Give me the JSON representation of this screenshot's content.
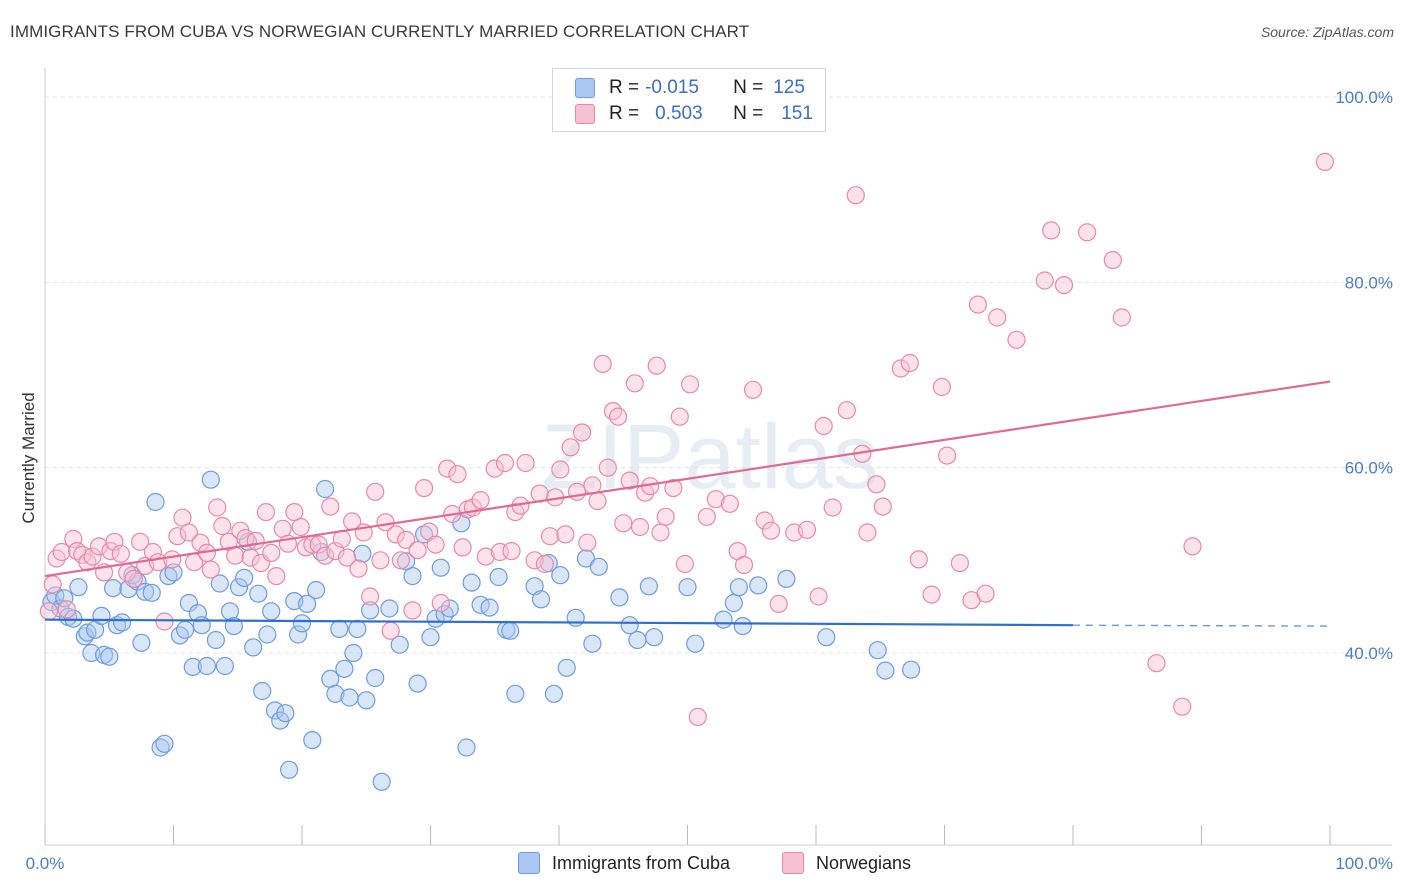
{
  "header": {
    "title": "IMMIGRANTS FROM CUBA VS NORWEGIAN CURRENTLY MARRIED CORRELATION CHART",
    "source": "Source: ZipAtlas.com"
  },
  "watermark": "ZIPatlas",
  "legend": {
    "rows": [
      {
        "r_label": "R =",
        "r_value": "-0.015",
        "n_label": "N =",
        "n_value": "125",
        "color": "#a9c7f0",
        "border": "#6f9be0"
      },
      {
        "r_label": "R =",
        "r_value": "0.503",
        "n_label": "N =",
        "n_value": "151",
        "color": "#f8c0d3",
        "border": "#e889a8"
      }
    ],
    "bottom": [
      {
        "label": "Immigrants from Cuba",
        "color": "#a9c7f0",
        "border": "#6f9be0"
      },
      {
        "label": "Norwegians",
        "color": "#f8c0d3",
        "border": "#e889a8"
      }
    ]
  },
  "chart_data": {
    "type": "scatter",
    "ylabel": "Currently Married",
    "x_tick_labels": [
      "0.0%",
      "100.0%"
    ],
    "y_tick_labels": [
      "100.0%",
      "80.0%",
      "60.0%",
      "40.0%"
    ],
    "xlim": [
      0,
      100
    ],
    "ylim": [
      18,
      104
    ],
    "grid": true,
    "series": [
      {
        "name": "Immigrants from Cuba",
        "color": "#6f9be0",
        "fill": "#a9c7f0",
        "trend": {
          "x0": 0,
          "y0": 43.6,
          "x1": 80,
          "y1": 43.0,
          "dash_to": 100,
          "dash_y": 42.9
        },
        "points": [
          [
            0.5,
            45.5
          ],
          [
            0.8,
            46.2
          ],
          [
            1.2,
            44.8
          ],
          [
            1.5,
            45.9
          ],
          [
            1.8,
            43.9
          ],
          [
            2.2,
            43.7
          ],
          [
            2.6,
            47.1
          ],
          [
            3.1,
            41.8
          ],
          [
            3.3,
            42.2
          ],
          [
            3.6,
            40.0
          ],
          [
            3.9,
            42.5
          ],
          [
            4.4,
            44.0
          ],
          [
            4.6,
            39.8
          ],
          [
            5.0,
            39.6
          ],
          [
            5.3,
            47.0
          ],
          [
            5.6,
            43.0
          ],
          [
            6.0,
            43.3
          ],
          [
            6.5,
            46.9
          ],
          [
            6.8,
            48.4
          ],
          [
            7.2,
            47.7
          ],
          [
            7.5,
            41.1
          ],
          [
            7.8,
            46.6
          ],
          [
            8.3,
            46.5
          ],
          [
            8.6,
            56.3
          ],
          [
            9.0,
            29.8
          ],
          [
            9.3,
            30.2
          ],
          [
            9.6,
            48.3
          ],
          [
            10.0,
            48.7
          ],
          [
            10.5,
            41.9
          ],
          [
            10.9,
            42.5
          ],
          [
            11.2,
            45.4
          ],
          [
            11.5,
            38.5
          ],
          [
            11.9,
            44.3
          ],
          [
            12.2,
            43.0
          ],
          [
            12.6,
            38.6
          ],
          [
            12.9,
            58.7
          ],
          [
            13.3,
            41.4
          ],
          [
            13.6,
            47.5
          ],
          [
            14.0,
            38.6
          ],
          [
            14.4,
            44.5
          ],
          [
            14.7,
            42.9
          ],
          [
            15.1,
            47.1
          ],
          [
            15.5,
            48.1
          ],
          [
            15.8,
            52.0
          ],
          [
            16.2,
            40.6
          ],
          [
            16.6,
            46.4
          ],
          [
            16.9,
            35.9
          ],
          [
            17.3,
            42.0
          ],
          [
            17.6,
            44.5
          ],
          [
            17.9,
            33.8
          ],
          [
            18.3,
            32.7
          ],
          [
            18.7,
            33.5
          ],
          [
            19.0,
            27.4
          ],
          [
            19.4,
            45.6
          ],
          [
            19.7,
            42.0
          ],
          [
            20.0,
            43.2
          ],
          [
            20.4,
            45.3
          ],
          [
            20.8,
            30.6
          ],
          [
            21.1,
            46.8
          ],
          [
            21.5,
            50.9
          ],
          [
            21.8,
            57.7
          ],
          [
            22.2,
            37.2
          ],
          [
            22.6,
            35.6
          ],
          [
            22.9,
            42.6
          ],
          [
            23.3,
            38.3
          ],
          [
            23.7,
            35.2
          ],
          [
            24.0,
            40.0
          ],
          [
            24.3,
            42.6
          ],
          [
            24.7,
            50.7
          ],
          [
            25.0,
            34.9
          ],
          [
            25.3,
            44.6
          ],
          [
            25.7,
            37.3
          ],
          [
            26.2,
            26.1
          ],
          [
            26.8,
            44.8
          ],
          [
            27.6,
            40.9
          ],
          [
            28.1,
            49.9
          ],
          [
            28.6,
            48.3
          ],
          [
            29.0,
            36.7
          ],
          [
            29.5,
            52.8
          ],
          [
            30.0,
            41.7
          ],
          [
            30.4,
            43.7
          ],
          [
            30.8,
            49.2
          ],
          [
            31.1,
            44.2
          ],
          [
            31.5,
            44.8
          ],
          [
            32.4,
            54.0
          ],
          [
            32.8,
            29.8
          ],
          [
            33.2,
            47.6
          ],
          [
            33.9,
            45.2
          ],
          [
            34.6,
            44.9
          ],
          [
            35.3,
            48.2
          ],
          [
            35.9,
            42.5
          ],
          [
            36.2,
            42.4
          ],
          [
            36.6,
            35.6
          ],
          [
            38.1,
            47.2
          ],
          [
            38.6,
            45.8
          ],
          [
            39.2,
            49.7
          ],
          [
            39.6,
            35.6
          ],
          [
            40.1,
            48.4
          ],
          [
            40.6,
            38.4
          ],
          [
            41.3,
            43.8
          ],
          [
            42.1,
            50.2
          ],
          [
            42.6,
            41.0
          ],
          [
            43.1,
            49.3
          ],
          [
            44.7,
            46.0
          ],
          [
            45.5,
            43.0
          ],
          [
            46.1,
            41.4
          ],
          [
            47.0,
            47.2
          ],
          [
            47.4,
            41.7
          ],
          [
            50.0,
            47.1
          ],
          [
            50.6,
            41.0
          ],
          [
            52.8,
            43.6
          ],
          [
            53.6,
            45.4
          ],
          [
            54.0,
            47.1
          ],
          [
            54.3,
            42.9
          ],
          [
            55.5,
            47.3
          ],
          [
            57.7,
            48.0
          ],
          [
            60.8,
            41.7
          ],
          [
            64.8,
            40.3
          ],
          [
            65.4,
            38.1
          ],
          [
            67.4,
            38.2
          ]
        ]
      },
      {
        "name": "Norwegians",
        "color": "#e889a8",
        "fill": "#f8c0d3",
        "trend": {
          "x0": 0,
          "y0": 48.3,
          "x1": 100,
          "y1": 69.3
        },
        "points": [
          [
            0.3,
            44.5
          ],
          [
            0.6,
            47.4
          ],
          [
            0.9,
            50.2
          ],
          [
            1.3,
            50.9
          ],
          [
            1.7,
            44.7
          ],
          [
            2.2,
            52.3
          ],
          [
            2.5,
            51.0
          ],
          [
            2.9,
            50.6
          ],
          [
            3.3,
            49.8
          ],
          [
            3.7,
            50.4
          ],
          [
            4.2,
            51.5
          ],
          [
            4.6,
            48.7
          ],
          [
            5.1,
            51.0
          ],
          [
            5.4,
            52.0
          ],
          [
            5.9,
            50.7
          ],
          [
            6.4,
            48.7
          ],
          [
            6.9,
            48.0
          ],
          [
            7.4,
            52.0
          ],
          [
            7.8,
            49.4
          ],
          [
            8.4,
            50.9
          ],
          [
            8.8,
            49.8
          ],
          [
            9.3,
            43.4
          ],
          [
            9.9,
            50.1
          ],
          [
            10.3,
            52.6
          ],
          [
            10.7,
            54.6
          ],
          [
            11.2,
            53.0
          ],
          [
            11.6,
            49.8
          ],
          [
            12.1,
            51.9
          ],
          [
            12.6,
            50.8
          ],
          [
            12.9,
            49.0
          ],
          [
            13.4,
            55.7
          ],
          [
            13.8,
            53.7
          ],
          [
            14.3,
            52.0
          ],
          [
            14.8,
            50.5
          ],
          [
            15.2,
            53.2
          ],
          [
            15.6,
            52.4
          ],
          [
            16.0,
            50.3
          ],
          [
            16.4,
            52.1
          ],
          [
            16.8,
            49.7
          ],
          [
            17.2,
            55.2
          ],
          [
            17.6,
            50.8
          ],
          [
            18.0,
            48.3
          ],
          [
            18.5,
            53.4
          ],
          [
            18.9,
            51.8
          ],
          [
            19.4,
            55.2
          ],
          [
            19.9,
            53.6
          ],
          [
            20.3,
            51.4
          ],
          [
            20.8,
            51.7
          ],
          [
            21.3,
            51.7
          ],
          [
            21.8,
            50.5
          ],
          [
            22.2,
            55.8
          ],
          [
            22.6,
            51.0
          ],
          [
            23.1,
            52.3
          ],
          [
            23.5,
            50.3
          ],
          [
            23.9,
            54.2
          ],
          [
            24.4,
            49.1
          ],
          [
            24.8,
            53.0
          ],
          [
            25.3,
            46.1
          ],
          [
            25.7,
            57.4
          ],
          [
            26.1,
            50.0
          ],
          [
            26.5,
            54.1
          ],
          [
            26.9,
            42.4
          ],
          [
            27.3,
            52.8
          ],
          [
            27.7,
            50.0
          ],
          [
            28.1,
            52.2
          ],
          [
            28.6,
            44.6
          ],
          [
            29.0,
            51.1
          ],
          [
            29.5,
            57.8
          ],
          [
            29.9,
            53.1
          ],
          [
            30.4,
            51.7
          ],
          [
            30.8,
            45.4
          ],
          [
            31.3,
            59.9
          ],
          [
            31.7,
            55.0
          ],
          [
            32.1,
            59.3
          ],
          [
            32.5,
            51.4
          ],
          [
            32.9,
            55.5
          ],
          [
            33.3,
            55.7
          ],
          [
            33.9,
            56.5
          ],
          [
            34.3,
            50.4
          ],
          [
            35.0,
            59.9
          ],
          [
            35.4,
            50.9
          ],
          [
            35.8,
            60.5
          ],
          [
            36.3,
            51.0
          ],
          [
            36.6,
            55.2
          ],
          [
            37.0,
            55.9
          ],
          [
            37.4,
            60.5
          ],
          [
            38.1,
            50.0
          ],
          [
            38.5,
            57.2
          ],
          [
            38.9,
            49.6
          ],
          [
            39.3,
            52.6
          ],
          [
            39.7,
            56.8
          ],
          [
            40.1,
            59.8
          ],
          [
            40.5,
            52.8
          ],
          [
            40.9,
            62.2
          ],
          [
            41.4,
            57.4
          ],
          [
            41.8,
            63.8
          ],
          [
            42.2,
            51.9
          ],
          [
            42.6,
            58.1
          ],
          [
            43.0,
            56.4
          ],
          [
            43.4,
            71.2
          ],
          [
            43.8,
            60.0
          ],
          [
            44.2,
            66.1
          ],
          [
            44.6,
            65.5
          ],
          [
            45.0,
            54.0
          ],
          [
            45.5,
            58.6
          ],
          [
            45.9,
            69.1
          ],
          [
            46.3,
            53.6
          ],
          [
            46.7,
            57.3
          ],
          [
            47.1,
            58.0
          ],
          [
            47.6,
            71.0
          ],
          [
            47.9,
            53.0
          ],
          [
            48.3,
            54.7
          ],
          [
            48.9,
            57.8
          ],
          [
            49.4,
            65.5
          ],
          [
            49.8,
            49.6
          ],
          [
            50.2,
            69.0
          ],
          [
            50.8,
            33.1
          ],
          [
            51.5,
            54.7
          ],
          [
            52.2,
            56.6
          ],
          [
            53.3,
            56.1
          ],
          [
            53.9,
            51.0
          ],
          [
            54.4,
            49.5
          ],
          [
            55.1,
            68.4
          ],
          [
            56.0,
            54.3
          ],
          [
            56.5,
            53.2
          ],
          [
            57.1,
            45.3
          ],
          [
            58.3,
            53.0
          ],
          [
            59.3,
            53.3
          ],
          [
            60.2,
            46.1
          ],
          [
            60.6,
            64.5
          ],
          [
            61.3,
            55.7
          ],
          [
            62.4,
            66.2
          ],
          [
            63.1,
            89.4
          ],
          [
            63.6,
            61.5
          ],
          [
            64.0,
            53.0
          ],
          [
            64.7,
            58.2
          ],
          [
            65.2,
            55.8
          ],
          [
            66.6,
            70.7
          ],
          [
            67.3,
            71.3
          ],
          [
            68.0,
            50.1
          ],
          [
            69.0,
            46.3
          ],
          [
            69.8,
            68.7
          ],
          [
            70.2,
            61.3
          ],
          [
            71.2,
            49.7
          ],
          [
            72.1,
            45.7
          ],
          [
            72.6,
            77.6
          ],
          [
            73.2,
            46.4
          ],
          [
            74.1,
            76.2
          ],
          [
            75.6,
            73.8
          ],
          [
            77.8,
            80.2
          ],
          [
            78.3,
            85.6
          ],
          [
            79.3,
            79.7
          ],
          [
            81.1,
            85.4
          ],
          [
            83.1,
            82.4
          ],
          [
            83.8,
            76.2
          ],
          [
            86.5,
            38.9
          ],
          [
            88.5,
            34.2
          ],
          [
            89.3,
            51.5
          ],
          [
            99.6,
            93.0
          ]
        ]
      }
    ]
  }
}
